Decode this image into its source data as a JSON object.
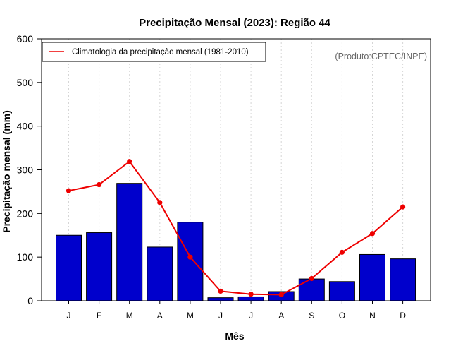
{
  "chart_data": {
    "type": "bar",
    "title": "Precipitação Mensal (2023): Região 44",
    "xlabel": "Mês",
    "ylabel": "Precipitação mensal (mm)",
    "ylim": [
      0,
      600
    ],
    "yticks": [
      0,
      100,
      200,
      300,
      400,
      500,
      600
    ],
    "grid": "vertical dotted",
    "categories": [
      "J",
      "F",
      "M",
      "A",
      "M",
      "J",
      "J",
      "A",
      "S",
      "O",
      "N",
      "D"
    ],
    "series": [
      {
        "name": "Precipitação mensal 2023",
        "type": "bar",
        "color": "#0000cc",
        "values": [
          150,
          156,
          269,
          123,
          180,
          7,
          9,
          21,
          50,
          44,
          106,
          96
        ]
      },
      {
        "name": "Climatologia da precipitação mensal (1981-2010)",
        "type": "line",
        "color": "#ee0000",
        "values": [
          252,
          266,
          319,
          225,
          100,
          22,
          15,
          14,
          51,
          111,
          154,
          215
        ]
      }
    ],
    "legend": {
      "position": "top-left",
      "entries": [
        "Climatologia da precipitação mensal (1981-2010)"
      ]
    },
    "annotation": "(Produto:CPTEC/INPE)"
  }
}
